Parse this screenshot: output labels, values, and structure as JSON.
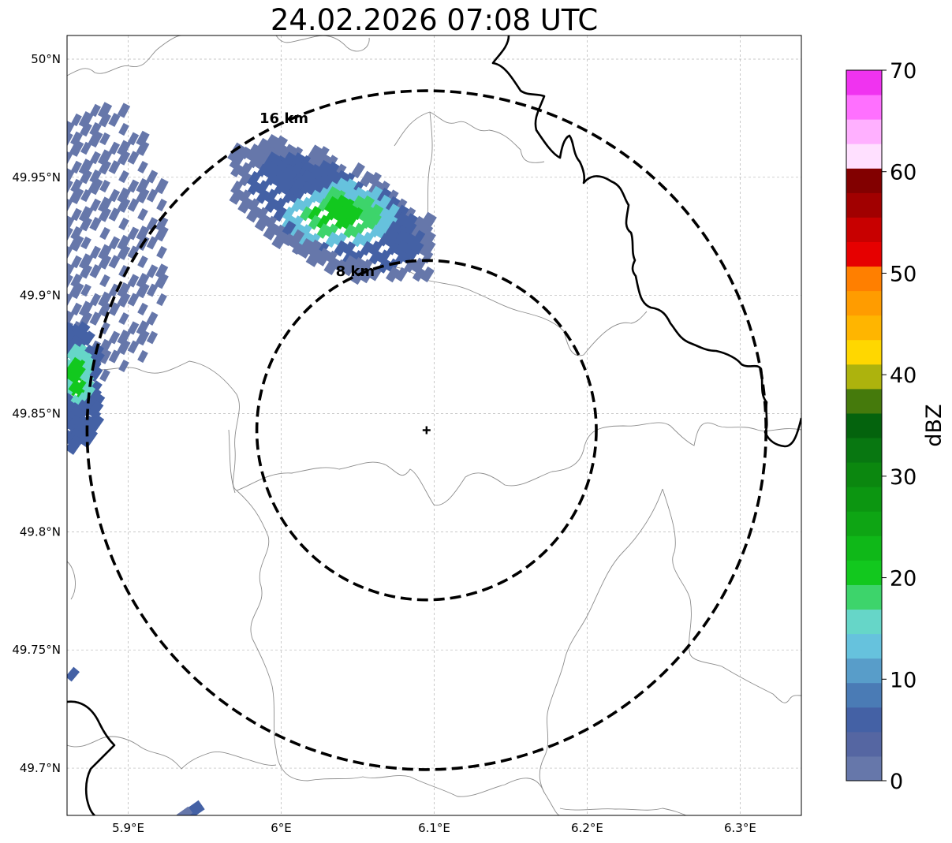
{
  "title": "24.02.2026 07:08 UTC",
  "map": {
    "lat_ticks": [
      {
        "value": 50.0,
        "label": "50°N"
      },
      {
        "value": 49.95,
        "label": "49.95°N"
      },
      {
        "value": 49.9,
        "label": "49.9°N"
      },
      {
        "value": 49.85,
        "label": "49.85°N"
      },
      {
        "value": 49.8,
        "label": "49.8°N"
      },
      {
        "value": 49.75,
        "label": "49.75°N"
      },
      {
        "value": 49.7,
        "label": "49.7°N"
      }
    ],
    "lon_ticks": [
      {
        "value": 5.9,
        "label": "5.9°E"
      },
      {
        "value": 6.0,
        "label": "6°E"
      },
      {
        "value": 6.1,
        "label": "6.1°E"
      },
      {
        "value": 6.2,
        "label": "6.2°E"
      },
      {
        "value": 6.3,
        "label": "6.3°E"
      }
    ],
    "extent": {
      "lon_min": 5.86,
      "lon_max": 6.34,
      "lat_min": 49.68,
      "lat_max": 50.01
    },
    "radar_site": {
      "lon": 6.095,
      "lat": 49.843,
      "marker": "plus-icon"
    },
    "range_rings": [
      {
        "radius_km": 8,
        "label": "8 km"
      },
      {
        "radius_km": 16,
        "label": "16 km"
      }
    ],
    "grid": true,
    "colors": {
      "border_national": "#000000",
      "border_regional": "#8c8c8c",
      "ring": "#000000"
    }
  },
  "colorbar": {
    "label": "dBZ",
    "min": 0,
    "max": 70,
    "step": 2.5,
    "ticks": [
      {
        "value": 0,
        "label": "0"
      },
      {
        "value": 10,
        "label": "10"
      },
      {
        "value": 20,
        "label": "20"
      },
      {
        "value": 30,
        "label": "30"
      },
      {
        "value": 40,
        "label": "40"
      },
      {
        "value": 50,
        "label": "50"
      },
      {
        "value": 60,
        "label": "60"
      },
      {
        "value": 70,
        "label": "70"
      }
    ],
    "colors": [
      "#6677aa",
      "#5566a2",
      "#4461a5",
      "#4a7bb5",
      "#589dc9",
      "#66c2dd",
      "#66d6c8",
      "#3dd46b",
      "#12c81e",
      "#0fb818",
      "#0ea514",
      "#0c9611",
      "#0b870f",
      "#087711",
      "#04630d",
      "#457a0c",
      "#adb30d",
      "#ffd700",
      "#ffb500",
      "#ff9c00",
      "#ff7f00",
      "#e60000",
      "#c80000",
      "#a10000",
      "#820000",
      "#ffe0ff",
      "#ffb0ff",
      "#ff70ff",
      "#f033f0"
    ]
  }
}
